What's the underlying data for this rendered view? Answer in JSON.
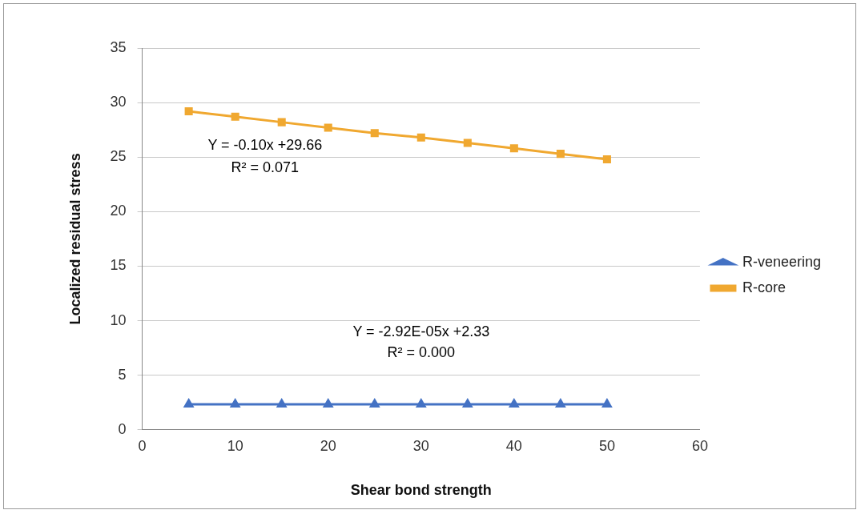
{
  "chart_data": {
    "type": "line",
    "xlabel": "Shear bond strength",
    "ylabel": "Localized residual stress",
    "x": [
      5,
      10,
      15,
      20,
      25,
      30,
      35,
      40,
      45,
      50
    ],
    "series": [
      {
        "name": "R-veneering",
        "color": "#4472c4",
        "marker": "triangle",
        "values": [
          2.33,
          2.33,
          2.33,
          2.33,
          2.33,
          2.33,
          2.33,
          2.33,
          2.33,
          2.33
        ]
      },
      {
        "name": "R-core",
        "color": "#f0a830",
        "marker": "square",
        "values": [
          29.2,
          28.7,
          28.2,
          27.7,
          27.2,
          26.8,
          26.3,
          25.8,
          25.3,
          24.8
        ]
      }
    ],
    "xlim": [
      0,
      60
    ],
    "xticks": [
      0,
      10,
      20,
      30,
      40,
      50,
      60
    ],
    "ylim": [
      0,
      35
    ],
    "yticks": [
      0,
      5,
      10,
      15,
      20,
      25,
      30,
      35
    ],
    "grid": "y",
    "legend": "right",
    "line_style": "solid",
    "annotations": [
      "Y = -0.10x +29.66",
      "R² = 0.071",
      "Y = -2.92E-05x +2.33",
      "R² = 0.000"
    ]
  }
}
